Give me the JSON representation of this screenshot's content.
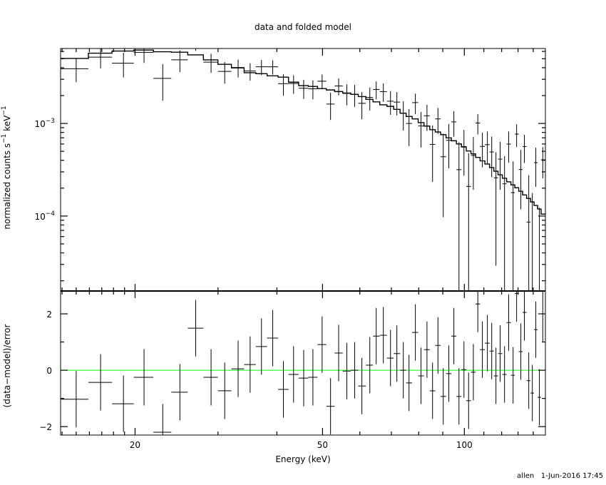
{
  "chart_data": [
    {
      "type": "scatter",
      "panel": "top",
      "title": "data and folded model",
      "xlabel": "",
      "ylabel_parts": [
        "normalized counts s",
        "−1",
        " keV",
        "−1"
      ],
      "xscale": "log",
      "yscale": "log",
      "xlim": [
        13.9,
        148.6
      ],
      "ylim": [
        1.55e-05,
        0.00645
      ],
      "grid": false,
      "y_tick_labels": [
        {
          "value": 0.001,
          "base": "10",
          "exp": "−3"
        },
        {
          "value": 0.0001,
          "base": "10",
          "exp": "−4"
        }
      ],
      "energy": [
        15.0,
        16.9,
        18.9,
        20.9,
        22.9,
        24.9,
        26.9,
        29.0,
        31.0,
        33.1,
        35.1,
        37.1,
        39.2,
        41.3,
        43.4,
        45.6,
        47.7,
        49.9,
        52.0,
        54.1,
        56.3,
        58.5,
        60.6,
        63.0,
        65.0,
        67.3,
        69.7,
        71.9,
        74.2,
        76.3,
        78.7,
        80.9,
        83.3,
        85.6,
        87.9,
        90.2,
        92.7,
        95.0,
        97.4,
        99.8,
        102.1,
        104.5,
        106.8,
        109.2,
        111.9,
        114.3,
        116.7,
        119.1,
        121.7,
        124.2,
        126.9,
        129.1,
        131.8,
        134.1,
        137.0,
        139.4,
        141.8,
        144.3,
        146.7
      ],
      "series": [
        {
          "kind": "data",
          "values": [
            0.0039,
            0.0052,
            0.00447,
            0.00586,
            0.00307,
            0.00487,
            0.0073,
            0.00459,
            0.00365,
            0.00402,
            0.00369,
            0.00409,
            0.00409,
            0.00269,
            0.0027,
            0.0024,
            0.00237,
            0.00286,
            0.00162,
            0.00254,
            0.00211,
            0.00206,
            0.00165,
            0.00191,
            0.00233,
            0.00221,
            0.00174,
            0.0017,
            0.00129,
            0.001,
            0.00168,
            0.00094,
            0.00121,
            0.000594,
            0.00112,
            0.000437,
            0.000658,
            0.00104,
            0.000317,
            0.000563,
            0.000209,
            0.000452,
            0.00101,
            0.000565,
            0.00059,
            0.000492,
            0.000259,
            0.000412,
            0.000223,
            0.000598,
            0.000179,
            0.000768,
            0.000318,
            0.000564,
            8.6e-05,
            -3e-06,
            0.000377,
            -3.7e-05,
            0.000405
          ],
          "errors": [
            0.00111,
            0.00126,
            0.00133,
            0.00136,
            0.00131,
            0.00129,
            0.00121,
            0.00107,
            0.00096,
            0.00088,
            0.00078,
            0.00076,
            0.00072,
            0.0007,
            0.00061,
            0.00056,
            0.00055,
            0.00052,
            0.00053,
            0.00053,
            0.00054,
            0.00055,
            0.00054,
            0.00053,
            0.00051,
            0.0005,
            0.0005,
            0.00048,
            0.00045,
            0.00043,
            0.00042,
            0.00039,
            0.00038,
            0.00036,
            0.00035,
            0.00034,
            0.00033,
            0.00032,
            0.00031,
            0.00029,
            0.00027,
            0.00026,
            0.00025,
            0.00023,
            0.00023,
            0.00023,
            0.00023,
            0.00022,
            0.00022,
            0.00022,
            0.00021,
            0.00021,
            0.0002,
            0.00019,
            0.00019,
            0.00018,
            0.00017,
            0.00016,
            0.00015
          ]
        },
        {
          "kind": "model",
          "values": [
            0.00504,
            0.00574,
            0.00606,
            0.0062,
            0.00595,
            0.00588,
            0.0055,
            0.00486,
            0.00435,
            0.00398,
            0.00353,
            0.00345,
            0.00327,
            0.00316,
            0.00279,
            0.00256,
            0.00251,
            0.00238,
            0.0023,
            0.00221,
            0.00213,
            0.00206,
            0.00195,
            0.00182,
            0.00171,
            0.00159,
            0.00153,
            0.00142,
            0.00129,
            0.00119,
            0.00112,
            0.00102,
            0.000937,
            0.000857,
            0.000809,
            0.000757,
            0.000698,
            0.00065,
            0.000601,
            0.000557,
            0.000504,
            0.00047,
            0.00043,
            0.000394,
            0.000365,
            0.000334,
            0.000305,
            0.000279,
            0.000256,
            0.000234,
            0.000217,
            0.000202,
            0.000185,
            0.000169,
            0.000155,
            0.000142,
            0.00013,
            0.000119,
            0.000105
          ]
        }
      ]
    },
    {
      "type": "scatter",
      "panel": "bottom",
      "xlabel": "Energy (keV)",
      "ylabel": "(data−model)/error",
      "xscale": "log",
      "xlim": [
        13.9,
        148.6
      ],
      "ylim": [
        -2.3,
        2.81
      ],
      "grid": false,
      "x_tick_labels": [
        {
          "value": 20,
          "label": "20"
        },
        {
          "value": 50,
          "label": "50"
        },
        {
          "value": 100,
          "label": "100"
        }
      ],
      "y_tick_labels": [
        {
          "value": 2,
          "label": "2"
        },
        {
          "value": 0,
          "label": "0"
        },
        {
          "value": -2,
          "label": "−2"
        }
      ],
      "zero_line_color": "#00ff00",
      "residuals": [
        -1.03,
        -0.43,
        -1.19,
        -0.25,
        -2.2,
        -0.78,
        1.49,
        -0.25,
        -0.73,
        0.05,
        0.2,
        0.84,
        1.14,
        -0.68,
        -0.15,
        -0.28,
        -0.25,
        0.91,
        -1.28,
        0.61,
        -0.03,
        0.0,
        -0.56,
        0.18,
        1.21,
        1.24,
        0.43,
        0.59,
        0.0,
        -0.45,
        1.34,
        -0.2,
        0.73,
        -0.73,
        0.88,
        -0.93,
        -0.12,
        1.21,
        -0.93,
        0.02,
        -1.08,
        -0.07,
        2.35,
        0.73,
        0.96,
        0.68,
        -0.2,
        0.59,
        -0.15,
        1.69,
        -0.18,
        2.72,
        0.66,
        2.05,
        -0.37,
        -0.81,
        1.44,
        -0.96,
        2.0
      ],
      "residual_error": 1
    }
  ],
  "footer": {
    "user": "allen",
    "timestamp": "1-Jun-2016 17:45"
  }
}
